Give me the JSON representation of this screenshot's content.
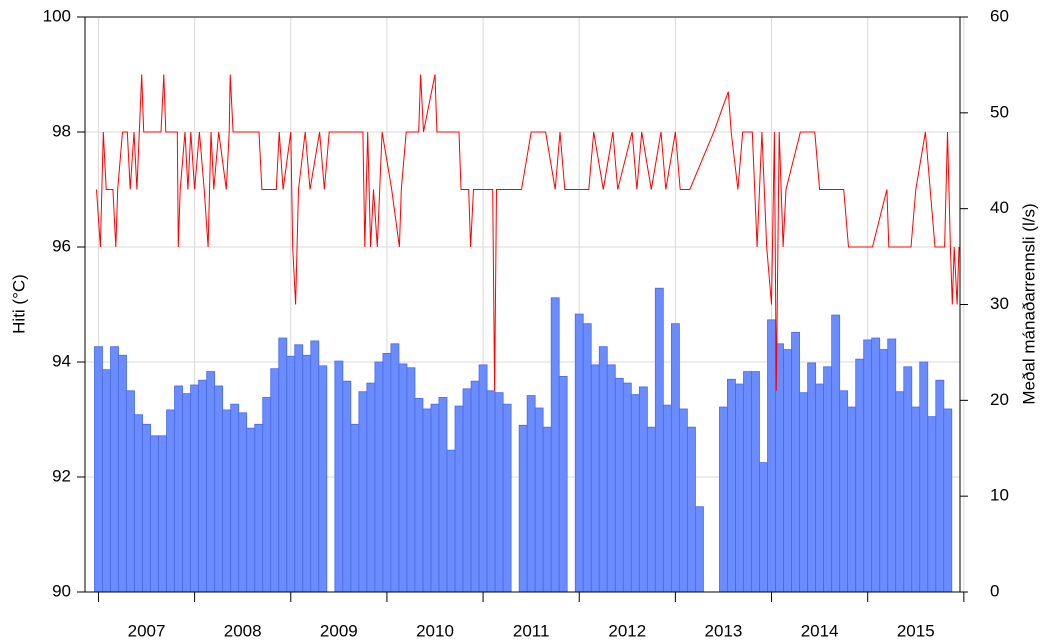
{
  "chart_data": {
    "type": "combo",
    "ylabel": "Hiti (°C)",
    "y2label": "Meðal mánaðarrennsli (l/s)",
    "xlim": [
      2006.86,
      2015.96
    ],
    "xticks": [
      2007,
      2008,
      2009,
      2010,
      2011,
      2012,
      2013,
      2014,
      2015,
      2016
    ],
    "year_labels": [
      2007,
      2008,
      2009,
      2010,
      2011,
      2012,
      2013,
      2014,
      2015
    ],
    "ylim": [
      90,
      100
    ],
    "yticks": [
      90,
      92,
      94,
      96,
      98,
      100
    ],
    "y2lim": [
      0,
      60
    ],
    "y2ticks": [
      0,
      10,
      20,
      30,
      40,
      50,
      60
    ],
    "grid": true,
    "series": [
      {
        "type": "bar",
        "axis": "y2",
        "color": "#6b8cff",
        "x": [
          2007,
          2007.083,
          2007.167,
          2007.25,
          2007.333,
          2007.417,
          2007.5,
          2007.583,
          2007.667,
          2007.75,
          2007.833,
          2007.917,
          2008,
          2008.083,
          2008.167,
          2008.25,
          2008.333,
          2008.417,
          2008.5,
          2008.583,
          2008.667,
          2008.75,
          2008.833,
          2008.917,
          2009,
          2009.083,
          2009.167,
          2009.25,
          2009.333,
          2009.417,
          2009.5,
          2009.583,
          2009.667,
          2009.75,
          2009.833,
          2009.917,
          2010,
          2010.083,
          2010.167,
          2010.25,
          2010.333,
          2010.417,
          2010.5,
          2010.583,
          2010.667,
          2010.75,
          2010.833,
          2010.917,
          2011,
          2011.083,
          2011.167,
          2011.25,
          2011.333,
          2011.417,
          2011.5,
          2011.583,
          2011.667,
          2011.75,
          2011.833,
          2011.917,
          2012,
          2012.083,
          2012.167,
          2012.25,
          2012.333,
          2012.417,
          2012.5,
          2012.583,
          2012.667,
          2012.75,
          2012.833,
          2012.917,
          2013,
          2013.083,
          2013.167,
          2013.25,
          2013.333,
          2013.417,
          2013.5,
          2013.583,
          2013.667,
          2013.75,
          2013.833,
          2013.917,
          2014,
          2014.083,
          2014.167,
          2014.25,
          2014.333,
          2014.417,
          2014.5,
          2014.583,
          2014.667,
          2014.75,
          2014.833,
          2014.917,
          2015,
          2015.083,
          2015.167,
          2015.25,
          2015.333,
          2015.417,
          2015.5,
          2015.583,
          2015.667,
          2015.75,
          2015.833
        ],
        "values": [
          25.6,
          23.2,
          25.6,
          24.7,
          21,
          18.5,
          17.5,
          16.3,
          16.3,
          19,
          21.5,
          20.7,
          21.6,
          22.1,
          23,
          21.5,
          19,
          19.6,
          18.7,
          17.1,
          17.5,
          20.3,
          23.3,
          26.5,
          24.6,
          25.8,
          24.7,
          26.2,
          23.6,
          null,
          24.1,
          22,
          17.5,
          20.9,
          21.8,
          24,
          24.9,
          25.9,
          23.8,
          23.4,
          20.2,
          19.1,
          19.6,
          20.3,
          14.8,
          19.4,
          21.2,
          22,
          23.7,
          21,
          20.8,
          19.6,
          null,
          17.4,
          20.5,
          19.2,
          17.2,
          30.7,
          22.5,
          null,
          29,
          28,
          23.7,
          25.6,
          23.7,
          22.3,
          21.8,
          20.6,
          21.4,
          17.2,
          31.7,
          19.5,
          28,
          19.1,
          17.2,
          8.9,
          null,
          null,
          19.3,
          22.2,
          21.7,
          23,
          23,
          13.5,
          28.4,
          25.9,
          25.3,
          27.1,
          20.8,
          23.9,
          21.7,
          23.5,
          28.9,
          21,
          19.3,
          24.3,
          26.3,
          26.5,
          25.3,
          26.4,
          20.9,
          23.5,
          19.3,
          24,
          18.3,
          22.1,
          19.1
        ]
      },
      {
        "type": "line",
        "axis": "y",
        "color": "#ff0000",
        "x": [
          2006.98,
          2007.02,
          2007.05,
          2007.08,
          2007.15,
          2007.18,
          2007.2,
          2007.25,
          2007.3,
          2007.33,
          2007.37,
          2007.4,
          2007.45,
          2007.47,
          2007.65,
          2007.68,
          2007.7,
          2007.82,
          2007.83,
          2007.85,
          2007.9,
          2007.93,
          2007.96,
          2008.0,
          2008.05,
          2008.1,
          2008.14,
          2008.17,
          2008.2,
          2008.25,
          2008.33,
          2008.36,
          2008.37,
          2008.4,
          2008.67,
          2008.7,
          2008.85,
          2008.88,
          2008.92,
          2009.0,
          2009.02,
          2009.05,
          2009.08,
          2009.15,
          2009.2,
          2009.3,
          2009.35,
          2009.4,
          2009.75,
          2009.77,
          2009.8,
          2009.83,
          2009.86,
          2009.9,
          2009.95,
          2010.05,
          2010.13,
          2010.15,
          2010.2,
          2010.33,
          2010.35,
          2010.38,
          2010.5,
          2010.52,
          2010.75,
          2010.77,
          2010.85,
          2010.87,
          2010.9,
          2011.1,
          2011.12,
          2011.14,
          2011.4,
          2011.5,
          2011.65,
          2011.75,
          2011.8,
          2011.85,
          2012.1,
          2012.15,
          2012.25,
          2012.35,
          2012.4,
          2012.55,
          2012.6,
          2012.65,
          2012.75,
          2012.85,
          2012.9,
          2013.0,
          2013.05,
          2013.15,
          2013.4,
          2013.55,
          2013.58,
          2013.65,
          2013.7,
          2013.8,
          2013.85,
          2013.9,
          2013.95,
          2014.0,
          2014.03,
          2014.05,
          2014.08,
          2014.12,
          2014.15,
          2014.3,
          2014.45,
          2014.5,
          2014.75,
          2014.8,
          2015.05,
          2015.2,
          2015.22,
          2015.45,
          2015.5,
          2015.6,
          2015.7,
          2015.8,
          2015.83,
          2015.86,
          2015.88,
          2015.9,
          2015.93,
          2015.95
        ],
        "values": [
          97,
          96,
          98,
          97,
          97,
          96,
          97,
          98,
          98,
          97,
          98,
          97,
          99,
          98,
          98,
          99,
          98,
          98,
          96,
          97,
          98,
          97,
          98,
          97,
          98,
          97,
          96,
          98,
          97,
          98,
          97,
          98,
          99,
          98,
          98,
          97,
          97,
          98,
          97,
          98,
          96,
          95,
          97,
          98,
          97,
          98,
          97,
          98,
          98,
          96,
          98,
          96,
          97,
          96,
          98,
          97,
          96,
          97,
          98,
          98,
          99,
          98,
          99,
          98,
          98,
          97,
          97,
          96,
          97,
          97,
          93.5,
          97,
          97,
          98,
          98,
          97,
          98,
          97,
          97,
          98,
          97,
          98,
          97,
          98,
          97,
          98,
          97,
          98,
          97,
          98,
          97,
          97,
          98,
          98.7,
          98,
          97,
          98,
          98,
          96,
          98,
          96,
          95,
          98,
          93.5,
          98,
          96,
          97,
          98,
          98,
          97,
          97,
          96,
          96,
          97,
          96,
          96,
          97,
          98,
          96,
          96,
          98,
          96,
          95,
          96,
          95,
          96
        ]
      }
    ]
  }
}
